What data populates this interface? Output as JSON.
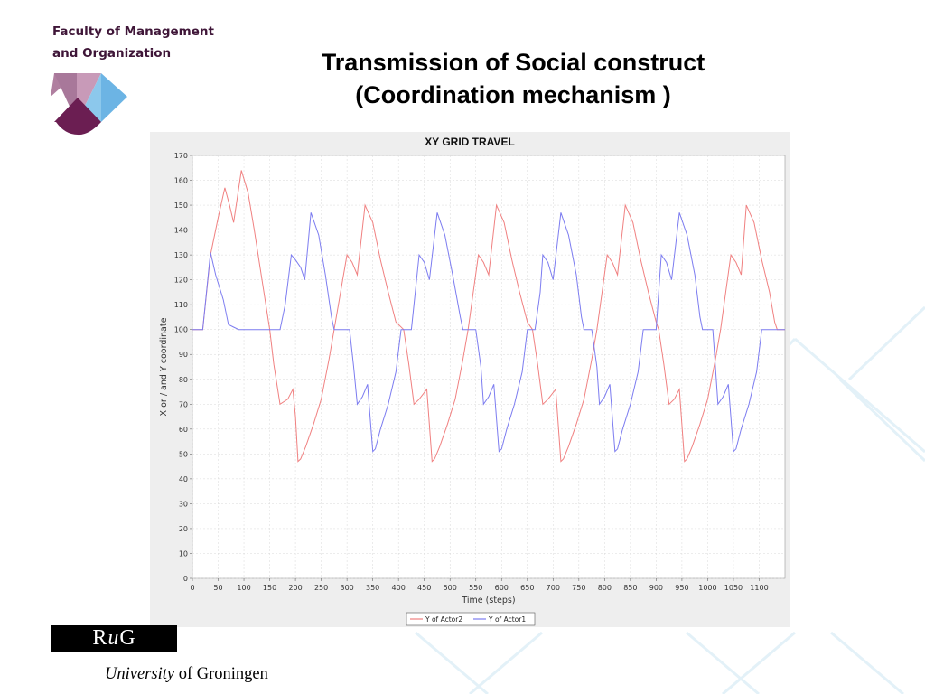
{
  "faculty": {
    "line1": "Faculty of Management",
    "line2": "and Organization"
  },
  "slide": {
    "title_line1": "Transmission of Social construct",
    "title_line2": "(Coordination mechanism )"
  },
  "footer": {
    "rug_r": "R",
    "rug_u": "u",
    "rug_g": "G",
    "university_italic": "University",
    "university_rest": " of Groningen"
  },
  "colors": {
    "actor2": "#f08080",
    "actor1": "#7c7cf0",
    "faculty_purple": "#6b1e52",
    "faculty_pink": "#b07fa0",
    "faculty_blue": "#6cb4e4"
  },
  "chart_data": {
    "type": "line",
    "title": "XY GRID TRAVEL",
    "xlabel": "Time (steps)",
    "ylabel": "X or / and Y coordinate",
    "xlim": [
      0,
      1150
    ],
    "ylim": [
      0,
      170
    ],
    "xticks": [
      0,
      50,
      100,
      150,
      200,
      250,
      300,
      350,
      400,
      450,
      500,
      550,
      600,
      650,
      700,
      750,
      800,
      850,
      900,
      950,
      1000,
      1050,
      1100
    ],
    "yticks": [
      0,
      10,
      20,
      30,
      40,
      50,
      60,
      70,
      80,
      90,
      100,
      110,
      120,
      130,
      140,
      150,
      160,
      170
    ],
    "grid": true,
    "legend_position": "bottom-center",
    "series": [
      {
        "name": "Y of Actor2",
        "color": "#f08080",
        "points": [
          [
            0,
            100
          ],
          [
            20,
            100
          ],
          [
            35,
            130
          ],
          [
            50,
            145
          ],
          [
            63,
            157
          ],
          [
            72,
            150
          ],
          [
            80,
            143
          ],
          [
            95,
            164
          ],
          [
            108,
            155
          ],
          [
            120,
            140
          ],
          [
            135,
            120
          ],
          [
            150,
            100
          ],
          [
            158,
            86
          ],
          [
            170,
            70
          ],
          [
            185,
            72
          ],
          [
            195,
            76
          ],
          [
            200,
            65
          ],
          [
            205,
            47
          ],
          [
            210,
            48
          ],
          [
            220,
            53
          ],
          [
            235,
            62
          ],
          [
            250,
            72
          ],
          [
            265,
            88
          ],
          [
            275,
            100
          ],
          [
            300,
            130
          ],
          [
            310,
            127
          ],
          [
            320,
            122
          ],
          [
            335,
            150
          ],
          [
            350,
            143
          ],
          [
            365,
            128
          ],
          [
            380,
            115
          ],
          [
            395,
            103
          ],
          [
            410,
            100
          ],
          [
            420,
            86
          ],
          [
            430,
            70
          ],
          [
            440,
            72
          ],
          [
            455,
            76
          ],
          [
            465,
            47
          ],
          [
            470,
            48
          ],
          [
            480,
            53
          ],
          [
            495,
            62
          ],
          [
            510,
            72
          ],
          [
            525,
            88
          ],
          [
            535,
            100
          ],
          [
            545,
            115
          ],
          [
            555,
            130
          ],
          [
            565,
            127
          ],
          [
            575,
            122
          ],
          [
            590,
            150
          ],
          [
            605,
            143
          ],
          [
            620,
            128
          ],
          [
            635,
            115
          ],
          [
            650,
            103
          ],
          [
            660,
            100
          ],
          [
            670,
            86
          ],
          [
            680,
            70
          ],
          [
            690,
            72
          ],
          [
            705,
            76
          ],
          [
            715,
            47
          ],
          [
            720,
            48
          ],
          [
            730,
            53
          ],
          [
            745,
            62
          ],
          [
            760,
            72
          ],
          [
            775,
            88
          ],
          [
            785,
            100
          ],
          [
            795,
            115
          ],
          [
            805,
            130
          ],
          [
            815,
            127
          ],
          [
            825,
            122
          ],
          [
            840,
            150
          ],
          [
            855,
            143
          ],
          [
            870,
            128
          ],
          [
            885,
            115
          ],
          [
            900,
            103
          ],
          [
            905,
            100
          ],
          [
            915,
            86
          ],
          [
            925,
            70
          ],
          [
            935,
            72
          ],
          [
            945,
            76
          ],
          [
            955,
            47
          ],
          [
            960,
            48
          ],
          [
            970,
            53
          ],
          [
            985,
            62
          ],
          [
            1000,
            72
          ],
          [
            1015,
            88
          ],
          [
            1025,
            100
          ],
          [
            1035,
            115
          ],
          [
            1045,
            130
          ],
          [
            1055,
            127
          ],
          [
            1065,
            122
          ],
          [
            1075,
            150
          ],
          [
            1090,
            143
          ],
          [
            1105,
            128
          ],
          [
            1120,
            115
          ],
          [
            1130,
            103
          ],
          [
            1135,
            100
          ],
          [
            1150,
            100
          ]
        ]
      },
      {
        "name": "Y of Actor1",
        "color": "#7c7cf0",
        "points": [
          [
            0,
            100
          ],
          [
            20,
            100
          ],
          [
            35,
            131
          ],
          [
            45,
            122
          ],
          [
            60,
            112
          ],
          [
            70,
            102
          ],
          [
            80,
            101
          ],
          [
            90,
            100
          ],
          [
            100,
            100
          ],
          [
            150,
            100
          ],
          [
            160,
            100
          ],
          [
            170,
            100
          ],
          [
            180,
            110
          ],
          [
            192,
            130
          ],
          [
            200,
            128
          ],
          [
            210,
            125
          ],
          [
            218,
            120
          ],
          [
            230,
            147
          ],
          [
            245,
            138
          ],
          [
            258,
            122
          ],
          [
            270,
            105
          ],
          [
            275,
            100
          ],
          [
            300,
            100
          ],
          [
            305,
            100
          ],
          [
            313,
            85
          ],
          [
            320,
            70
          ],
          [
            330,
            73
          ],
          [
            340,
            78
          ],
          [
            350,
            51
          ],
          [
            355,
            52
          ],
          [
            365,
            60
          ],
          [
            380,
            70
          ],
          [
            395,
            83
          ],
          [
            405,
            100
          ],
          [
            425,
            100
          ],
          [
            440,
            130
          ],
          [
            450,
            127
          ],
          [
            460,
            120
          ],
          [
            475,
            147
          ],
          [
            490,
            138
          ],
          [
            505,
            122
          ],
          [
            520,
            105
          ],
          [
            525,
            100
          ],
          [
            545,
            100
          ],
          [
            550,
            100
          ],
          [
            560,
            85
          ],
          [
            565,
            70
          ],
          [
            575,
            73
          ],
          [
            585,
            78
          ],
          [
            595,
            51
          ],
          [
            600,
            52
          ],
          [
            610,
            60
          ],
          [
            625,
            70
          ],
          [
            640,
            83
          ],
          [
            650,
            100
          ],
          [
            665,
            100
          ],
          [
            675,
            115
          ],
          [
            680,
            130
          ],
          [
            690,
            127
          ],
          [
            700,
            120
          ],
          [
            715,
            147
          ],
          [
            730,
            138
          ],
          [
            745,
            122
          ],
          [
            755,
            105
          ],
          [
            760,
            100
          ],
          [
            775,
            100
          ],
          [
            785,
            85
          ],
          [
            790,
            70
          ],
          [
            800,
            73
          ],
          [
            810,
            78
          ],
          [
            820,
            51
          ],
          [
            825,
            52
          ],
          [
            835,
            60
          ],
          [
            850,
            70
          ],
          [
            865,
            83
          ],
          [
            875,
            100
          ],
          [
            900,
            100
          ],
          [
            905,
            115
          ],
          [
            910,
            130
          ],
          [
            920,
            127
          ],
          [
            930,
            120
          ],
          [
            945,
            147
          ],
          [
            960,
            138
          ],
          [
            975,
            122
          ],
          [
            985,
            105
          ],
          [
            990,
            100
          ],
          [
            1010,
            100
          ],
          [
            1015,
            85
          ],
          [
            1020,
            70
          ],
          [
            1030,
            73
          ],
          [
            1040,
            78
          ],
          [
            1050,
            51
          ],
          [
            1055,
            52
          ],
          [
            1065,
            60
          ],
          [
            1080,
            70
          ],
          [
            1095,
            83
          ],
          [
            1105,
            100
          ],
          [
            1150,
            100
          ]
        ]
      }
    ]
  }
}
